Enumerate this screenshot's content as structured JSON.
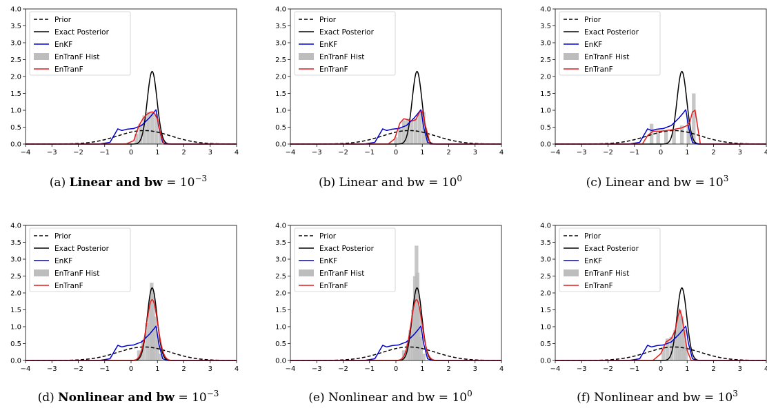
{
  "legend_entries": [
    "Prior",
    "Exact Posterior",
    "EnKF",
    "EnTranF Hist",
    "EnTranF"
  ],
  "colors": {
    "prior": "#000000",
    "exact": "#000000",
    "enkf": "#0000cc",
    "hist": "#bdbdbd",
    "entranf": "#e41a1c"
  },
  "x_ticks": [
    "−4",
    "−3",
    "−2",
    "−1",
    "0",
    "1",
    "2",
    "3",
    "4"
  ],
  "y_ticks": [
    "0.0",
    "0.5",
    "1.0",
    "1.5",
    "2.0",
    "2.5",
    "3.0",
    "3.5",
    "4.0"
  ],
  "chart_data": [
    {
      "type": "line",
      "caption": {
        "label": "(a)",
        "pre": "Linear and bw",
        "bold": true,
        "post": " = 10",
        "sup": "−3"
      },
      "xlim": [
        -4,
        4
      ],
      "ylim": [
        0,
        4
      ],
      "grid": false,
      "legend_position": "top-left",
      "series": [
        {
          "name": "Prior",
          "style": "dashed",
          "mu": 0.5,
          "sigma": 1.0,
          "peak": 0.4
        },
        {
          "name": "Exact Posterior",
          "style": "solid",
          "mu": 0.8,
          "sigma": 0.185,
          "peak": 2.15
        },
        {
          "name": "EnKF",
          "style": "solid",
          "x": [
            -4,
            -1.2,
            -0.8,
            -0.5,
            -0.35,
            -0.15,
            0.1,
            0.4,
            0.7,
            0.85,
            0.95,
            1.05,
            1.2,
            1.4,
            4
          ],
          "y": [
            0,
            0,
            0.05,
            0.45,
            0.4,
            0.44,
            0.46,
            0.55,
            0.78,
            0.92,
            1.02,
            0.5,
            0.05,
            0,
            0
          ]
        },
        {
          "name": "EnTranF Hist",
          "x": [
            0.2,
            0.35,
            0.5,
            0.65,
            0.8,
            0.95,
            1.1
          ],
          "y": [
            0.3,
            0.6,
            0.85,
            0.95,
            0.95,
            0.9,
            0.4
          ]
        },
        {
          "name": "EnTranF",
          "style": "solid",
          "x": [
            -4,
            -0.2,
            0.1,
            0.3,
            0.45,
            0.6,
            0.75,
            0.85,
            1.0,
            1.1,
            1.25,
            4
          ],
          "y": [
            0,
            0,
            0.1,
            0.55,
            0.75,
            0.88,
            0.95,
            0.95,
            0.75,
            0.35,
            0,
            0
          ]
        }
      ]
    },
    {
      "type": "line",
      "caption": {
        "label": "(b)",
        "pre": "Linear and bw",
        "bold": false,
        "post": " = 10",
        "sup": "0"
      },
      "xlim": [
        -4,
        4
      ],
      "ylim": [
        0,
        4
      ],
      "grid": false,
      "legend_position": "top-left",
      "series": [
        {
          "name": "Prior",
          "style": "dashed",
          "mu": 0.5,
          "sigma": 1.0,
          "peak": 0.4
        },
        {
          "name": "Exact Posterior",
          "style": "solid",
          "mu": 0.8,
          "sigma": 0.185,
          "peak": 2.15
        },
        {
          "name": "EnKF",
          "style": "solid",
          "x": [
            -4,
            -1.2,
            -0.8,
            -0.5,
            -0.35,
            -0.15,
            0.1,
            0.4,
            0.7,
            0.85,
            0.95,
            1.05,
            1.2,
            1.4,
            4
          ],
          "y": [
            0,
            0,
            0.05,
            0.45,
            0.4,
            0.44,
            0.46,
            0.55,
            0.78,
            0.92,
            1.02,
            0.5,
            0.05,
            0,
            0
          ]
        },
        {
          "name": "EnTranF Hist",
          "x": [
            0.0,
            0.15,
            0.3,
            0.45,
            0.6,
            0.75,
            0.9,
            1.05,
            1.2
          ],
          "y": [
            0.2,
            0.5,
            0.7,
            0.75,
            0.7,
            0.75,
            0.95,
            0.95,
            0.3
          ]
        },
        {
          "name": "EnTranF",
          "style": "solid",
          "x": [
            -4,
            -0.3,
            -0.05,
            0.15,
            0.3,
            0.45,
            0.6,
            0.75,
            0.9,
            1.0,
            1.1,
            1.3,
            4
          ],
          "y": [
            0,
            0,
            0.15,
            0.62,
            0.75,
            0.72,
            0.68,
            0.72,
            0.95,
            0.98,
            0.6,
            0,
            0
          ]
        }
      ]
    },
    {
      "type": "line",
      "caption": {
        "label": "(c)",
        "pre": "Linear and bw",
        "bold": false,
        "post": " = 10",
        "sup": "3"
      },
      "xlim": [
        -4,
        4
      ],
      "ylim": [
        0,
        4
      ],
      "grid": false,
      "legend_position": "top-left",
      "series": [
        {
          "name": "Prior",
          "style": "dashed",
          "mu": 0.5,
          "sigma": 1.0,
          "peak": 0.4
        },
        {
          "name": "Exact Posterior",
          "style": "solid",
          "mu": 0.8,
          "sigma": 0.185,
          "peak": 2.15
        },
        {
          "name": "EnKF",
          "style": "solid",
          "x": [
            -4,
            -1.2,
            -0.8,
            -0.5,
            -0.35,
            -0.15,
            0.1,
            0.4,
            0.7,
            0.85,
            0.95,
            1.05,
            1.2,
            1.4,
            4
          ],
          "y": [
            0,
            0,
            0.05,
            0.45,
            0.4,
            0.44,
            0.46,
            0.55,
            0.78,
            0.92,
            1.02,
            0.5,
            0.05,
            0,
            0
          ]
        },
        {
          "name": "EnTranF Hist",
          "x": [
            -0.35,
            -0.1,
            0.2,
            0.5,
            0.8,
            1.05,
            1.25
          ],
          "y": [
            0.6,
            0.35,
            0.4,
            0.45,
            0.55,
            0.7,
            1.5
          ]
        },
        {
          "name": "EnTranF",
          "style": "solid",
          "x": [
            -4,
            -0.7,
            -0.5,
            -0.3,
            0.0,
            0.4,
            0.8,
            1.0,
            1.1,
            1.2,
            1.3,
            1.4,
            1.5,
            4
          ],
          "y": [
            0,
            0,
            0.25,
            0.38,
            0.38,
            0.42,
            0.48,
            0.55,
            0.65,
            0.95,
            1.0,
            0.5,
            0,
            0
          ]
        }
      ]
    },
    {
      "type": "line",
      "caption": {
        "label": "(d)",
        "pre": "Nonlinear and bw",
        "bold": true,
        "post": " = 10",
        "sup": "−3"
      },
      "xlim": [
        -4,
        4
      ],
      "ylim": [
        0,
        4
      ],
      "grid": false,
      "legend_position": "top-left",
      "series": [
        {
          "name": "Prior",
          "style": "dashed",
          "mu": 0.5,
          "sigma": 1.0,
          "peak": 0.4
        },
        {
          "name": "Exact Posterior",
          "style": "solid",
          "mu": 0.8,
          "sigma": 0.185,
          "peak": 2.15
        },
        {
          "name": "EnKF",
          "style": "solid",
          "x": [
            -4,
            -1.2,
            -0.8,
            -0.5,
            -0.35,
            -0.15,
            0.1,
            0.4,
            0.7,
            0.85,
            0.95,
            1.05,
            1.2,
            1.4,
            4
          ],
          "y": [
            0,
            0,
            0.05,
            0.45,
            0.4,
            0.44,
            0.46,
            0.55,
            0.78,
            0.92,
            1.02,
            0.5,
            0.05,
            0,
            0
          ]
        },
        {
          "name": "EnTranF Hist",
          "x": [
            0.3,
            0.45,
            0.6,
            0.72,
            0.78,
            0.84,
            0.92,
            1.0,
            1.1
          ],
          "y": [
            0.3,
            0.6,
            1.1,
            1.7,
            2.3,
            2.0,
            1.3,
            0.6,
            0.2
          ]
        },
        {
          "name": "EnTranF",
          "style": "solid",
          "mu": 0.8,
          "sigma": 0.21,
          "peak": 1.8
        }
      ]
    },
    {
      "type": "line",
      "caption": {
        "label": "(e)",
        "pre": "Nonlinear and bw",
        "bold": false,
        "post": " = 10",
        "sup": "0"
      },
      "xlim": [
        -4,
        4
      ],
      "ylim": [
        0,
        4
      ],
      "grid": false,
      "legend_position": "top-left",
      "series": [
        {
          "name": "Prior",
          "style": "dashed",
          "mu": 0.5,
          "sigma": 1.0,
          "peak": 0.4
        },
        {
          "name": "Exact Posterior",
          "style": "solid",
          "mu": 0.8,
          "sigma": 0.185,
          "peak": 2.15
        },
        {
          "name": "EnKF",
          "style": "solid",
          "x": [
            -4,
            -1.2,
            -0.8,
            -0.5,
            -0.35,
            -0.15,
            0.1,
            0.4,
            0.7,
            0.85,
            0.95,
            1.05,
            1.2,
            1.4,
            4
          ],
          "y": [
            0,
            0,
            0.05,
            0.45,
            0.4,
            0.44,
            0.46,
            0.55,
            0.78,
            0.92,
            1.02,
            0.5,
            0.05,
            0,
            0
          ]
        },
        {
          "name": "EnTranF Hist",
          "x": [
            0.3,
            0.45,
            0.55,
            0.65,
            0.72,
            0.78,
            0.82,
            0.88,
            0.95,
            1.05
          ],
          "y": [
            0.3,
            0.5,
            0.9,
            1.5,
            2.5,
            3.4,
            2.6,
            1.6,
            0.7,
            0.2
          ]
        },
        {
          "name": "EnTranF",
          "style": "solid",
          "mu": 0.78,
          "sigma": 0.21,
          "peak": 1.8
        }
      ]
    },
    {
      "type": "line",
      "caption": {
        "label": "(f)",
        "pre": "Nonlinear and bw",
        "bold": false,
        "post": " = 10",
        "sup": "3"
      },
      "xlim": [
        -4,
        4
      ],
      "ylim": [
        0,
        4
      ],
      "grid": false,
      "legend_position": "top-left",
      "series": [
        {
          "name": "Prior",
          "style": "dashed",
          "mu": 0.5,
          "sigma": 1.0,
          "peak": 0.4
        },
        {
          "name": "Exact Posterior",
          "style": "solid",
          "mu": 0.8,
          "sigma": 0.185,
          "peak": 2.15
        },
        {
          "name": "EnKF",
          "style": "solid",
          "x": [
            -4,
            -1.2,
            -0.8,
            -0.5,
            -0.35,
            -0.15,
            0.1,
            0.4,
            0.7,
            0.85,
            0.95,
            1.05,
            1.2,
            1.4,
            4
          ],
          "y": [
            0,
            0,
            0.05,
            0.45,
            0.4,
            0.44,
            0.46,
            0.55,
            0.78,
            0.92,
            1.02,
            0.5,
            0.05,
            0,
            0
          ]
        },
        {
          "name": "EnTranF Hist",
          "x": [
            0.1,
            0.25,
            0.4,
            0.55,
            0.65,
            0.72,
            0.8,
            0.88,
            0.95
          ],
          "y": [
            0.4,
            0.65,
            0.7,
            0.9,
            1.3,
            1.5,
            1.3,
            0.9,
            0.4
          ]
        },
        {
          "name": "EnTranF",
          "style": "solid",
          "x": [
            -4,
            -0.3,
            0.0,
            0.2,
            0.4,
            0.55,
            0.65,
            0.72,
            0.8,
            0.9,
            1.0,
            1.15,
            4
          ],
          "y": [
            0,
            0,
            0.2,
            0.55,
            0.65,
            0.9,
            1.3,
            1.5,
            1.3,
            0.8,
            0.3,
            0,
            0
          ]
        }
      ]
    }
  ]
}
